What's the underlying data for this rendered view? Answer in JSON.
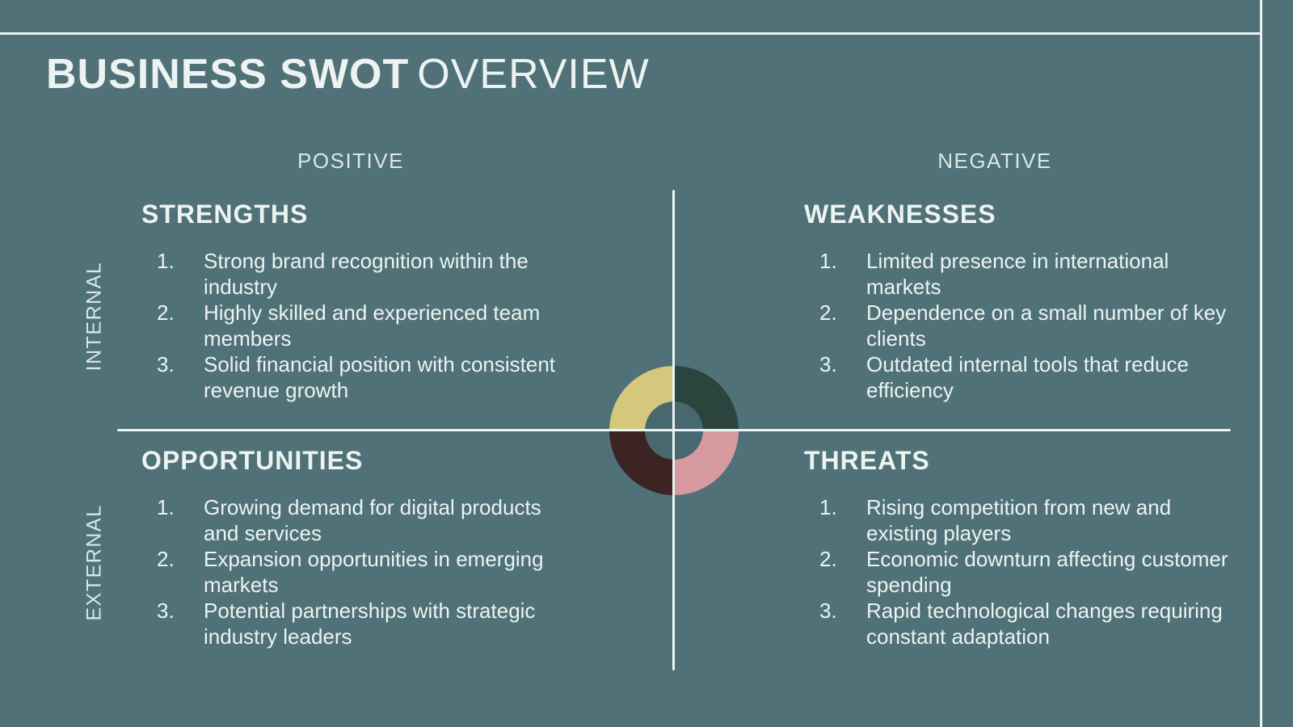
{
  "header": {
    "title_primary": "BUSINESS SWOT",
    "title_secondary": "OVERVIEW"
  },
  "axis_labels": {
    "top_left": "POSITIVE",
    "top_right": "NEGATIVE",
    "left_top": "INTERNAL",
    "left_bottom": "EXTERNAL"
  },
  "quadrants": [
    {
      "id": "strengths",
      "title": "STRENGTHS",
      "donut_color": "#d5c87d",
      "items": [
        {
          "n": "1.",
          "text": "Strong brand recognition within the industry"
        },
        {
          "n": "2.",
          "text": "Highly skilled and experienced team members"
        },
        {
          "n": "3.",
          "text": "Solid financial position with consistent revenue growth"
        }
      ]
    },
    {
      "id": "weaknesses",
      "title": "WEAKNESSES",
      "donut_color": "#2c443e",
      "items": [
        {
          "n": "1.",
          "text": "Limited presence in international markets"
        },
        {
          "n": "2.",
          "text": "Dependence on a small number of key clients"
        },
        {
          "n": "3.",
          "text": "Outdated internal tools that reduce efficiency"
        }
      ]
    },
    {
      "id": "opportunities",
      "title": "OPPORTUNITIES",
      "donut_color": "#3b2423",
      "items": [
        {
          "n": "1.",
          "text": "Growing demand for digital products and services"
        },
        {
          "n": "2.",
          "text": "Expansion opportunities in emerging markets"
        },
        {
          "n": "3.",
          "text": "Potential partnerships with strategic industry leaders"
        }
      ]
    },
    {
      "id": "threats",
      "title": "THREATS",
      "donut_color": "#d79aa1",
      "items": [
        {
          "n": "1.",
          "text": "Rising competition from new and existing players"
        },
        {
          "n": "2.",
          "text": "Economic downturn affecting customer spending"
        },
        {
          "n": "3.",
          "text": "Rapid technological changes requiring constant adaptation"
        }
      ]
    }
  ],
  "colors": {
    "background": "#4f7177",
    "text": "#ecf3f1",
    "axis_text": "#d9e7e5",
    "line": "#e9f4f2",
    "donut_strengths": "#d5c87d",
    "donut_weaknesses": "#2c443e",
    "donut_opportunities": "#3b2423",
    "donut_threats": "#d79aa1",
    "donut_hole": "#47686f"
  }
}
